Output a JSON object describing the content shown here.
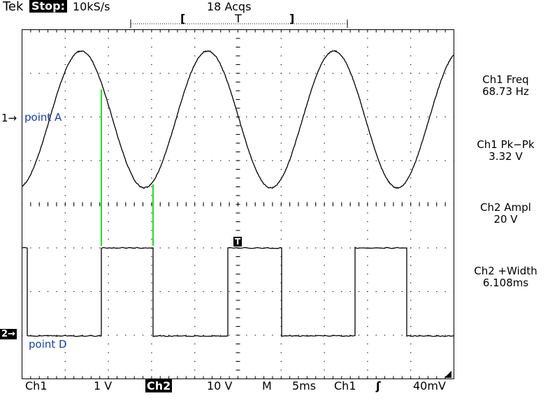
{
  "header": {
    "brand": "Tek",
    "run_state": "Stop:",
    "sample_rate": "10kS/s",
    "acquisitions": "18 Acqs",
    "trigger_position_glyph": "T",
    "bracket_left": "[",
    "bracket_right": "]"
  },
  "markers": {
    "ch1_marker": "1→",
    "ch2_marker": "2→",
    "trigger_marker": "T"
  },
  "annotations": {
    "point_a": "point A",
    "point_d": "point D"
  },
  "measurements": [
    {
      "label": "Ch1 Freq",
      "value": "68.73 Hz"
    },
    {
      "label": "Ch1 Pk−Pk",
      "value": "3.32 V"
    },
    {
      "label": "Ch2 Ampl",
      "value": "20 V"
    },
    {
      "label": "Ch2 +Width",
      "value": "6.108ms"
    }
  ],
  "status_bar": {
    "ch1_label": "Ch1",
    "ch1_scale": "1 V",
    "ch2_label": "Ch2",
    "ch2_scale": "10 V",
    "timebase_label": "M",
    "timebase_value": "5ms",
    "trigger_source": "Ch1",
    "trigger_slope_glyph": "ʃ",
    "trigger_level": "40mV"
  },
  "colors": {
    "trace": "#000000",
    "annotation_text": "#1a3fa8",
    "cursor_lines": "#22dd22",
    "graticule": "#000000"
  }
}
